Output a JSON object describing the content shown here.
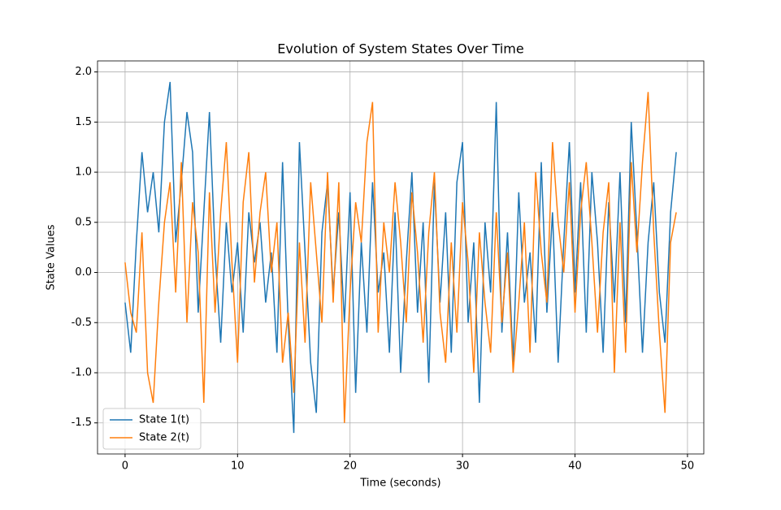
{
  "chart_data": {
    "type": "line",
    "title": "Evolution of System States Over Time",
    "xlabel": "Time (seconds)",
    "ylabel": "State Values",
    "x": [
      0,
      0.5,
      1,
      1.5,
      2,
      2.5,
      3,
      3.5,
      4,
      4.5,
      5,
      5.5,
      6,
      6.5,
      7,
      7.5,
      8,
      8.5,
      9,
      9.5,
      10,
      10.5,
      11,
      11.5,
      12,
      12.5,
      13,
      13.5,
      14,
      14.5,
      15,
      15.5,
      16,
      16.5,
      17,
      17.5,
      18,
      18.5,
      19,
      19.5,
      20,
      20.5,
      21,
      21.5,
      22,
      22.5,
      23,
      23.5,
      24,
      24.5,
      25,
      25.5,
      26,
      26.5,
      27,
      27.5,
      28,
      28.5,
      29,
      29.5,
      30,
      30.5,
      31,
      31.5,
      32,
      32.5,
      33,
      33.5,
      34,
      34.5,
      35,
      35.5,
      36,
      36.5,
      37,
      37.5,
      38,
      38.5,
      39,
      39.5,
      40,
      40.5,
      41,
      41.5,
      42,
      42.5,
      43,
      43.5,
      44,
      44.5,
      45,
      45.5,
      46,
      46.5,
      47,
      47.5,
      48,
      48.5,
      49
    ],
    "series": [
      {
        "name": "State 1(t)",
        "color": "#1f77b4",
        "values": [
          -0.3,
          -0.8,
          0.3,
          1.2,
          0.6,
          1.0,
          0.4,
          1.5,
          1.9,
          0.3,
          0.9,
          1.6,
          1.2,
          -0.4,
          0.6,
          1.6,
          0.2,
          -0.7,
          0.5,
          -0.2,
          0.3,
          -0.6,
          0.6,
          0.1,
          0.5,
          -0.3,
          0.2,
          -0.8,
          1.1,
          -0.5,
          -1.6,
          1.3,
          0.2,
          -0.9,
          -1.4,
          0.4,
          0.9,
          -0.2,
          0.6,
          -0.5,
          0.8,
          -1.2,
          0.3,
          -0.6,
          0.9,
          -0.2,
          0.2,
          -0.8,
          0.6,
          -1.0,
          0.1,
          1.0,
          -0.4,
          0.5,
          -1.1,
          0.9,
          -0.3,
          0.6,
          -0.8,
          0.9,
          1.3,
          -0.5,
          0.3,
          -1.3,
          0.5,
          -0.2,
          1.7,
          -0.6,
          0.4,
          -0.9,
          0.8,
          -0.3,
          0.2,
          -0.7,
          1.1,
          -0.4,
          0.6,
          -0.9,
          0.3,
          1.3,
          -0.2,
          0.9,
          -0.6,
          1.0,
          0.3,
          -0.8,
          0.7,
          -0.3,
          1.0,
          -0.5,
          1.5,
          0.4,
          -0.8,
          0.3,
          0.9,
          -0.2,
          -0.7,
          0.6,
          1.2
        ]
      },
      {
        "name": "State 2(t)",
        "color": "#ff7f0e",
        "values": [
          0.1,
          -0.4,
          -0.6,
          0.4,
          -1.0,
          -1.3,
          -0.3,
          0.5,
          0.9,
          -0.2,
          1.1,
          -0.5,
          0.7,
          0.2,
          -1.3,
          0.8,
          -0.4,
          0.6,
          1.3,
          0.1,
          -0.9,
          0.7,
          1.2,
          -0.1,
          0.6,
          1.0,
          0.0,
          0.5,
          -0.9,
          -0.4,
          -1.2,
          0.3,
          -0.7,
          0.9,
          0.2,
          -0.5,
          1.0,
          -0.3,
          0.9,
          -1.5,
          -0.2,
          0.7,
          0.3,
          1.3,
          1.7,
          -0.6,
          0.5,
          0.0,
          0.9,
          0.3,
          -0.5,
          0.8,
          0.2,
          -0.7,
          0.4,
          1.0,
          -0.4,
          -0.9,
          0.3,
          -0.6,
          0.7,
          0.1,
          -1.0,
          0.4,
          -0.3,
          -0.8,
          0.6,
          -0.5,
          0.2,
          -1.0,
          -0.3,
          0.5,
          -0.8,
          1.0,
          0.2,
          -0.3,
          1.3,
          0.5,
          0.0,
          0.9,
          -0.4,
          0.6,
          1.1,
          0.3,
          -0.6,
          0.4,
          0.9,
          -1.0,
          0.5,
          -0.8,
          1.1,
          0.2,
          1.1,
          1.8,
          0.4,
          -0.6,
          -1.4,
          0.3,
          0.6
        ]
      }
    ],
    "xlim": [
      -2.45,
      51.45
    ],
    "ylim": [
      -1.81,
      2.11
    ],
    "xticks": [
      0,
      10,
      20,
      30,
      40,
      50
    ],
    "yticks": [
      -1.5,
      {
        "value": -1,
        "label": "-1.0"
      },
      -0.5,
      {
        "value": 0,
        "label": "0.0"
      },
      0.5,
      {
        "value": 1,
        "label": "1.0"
      },
      1.5,
      {
        "value": 2,
        "label": "2.0"
      }
    ],
    "grid": true,
    "legend": "lower-left"
  }
}
